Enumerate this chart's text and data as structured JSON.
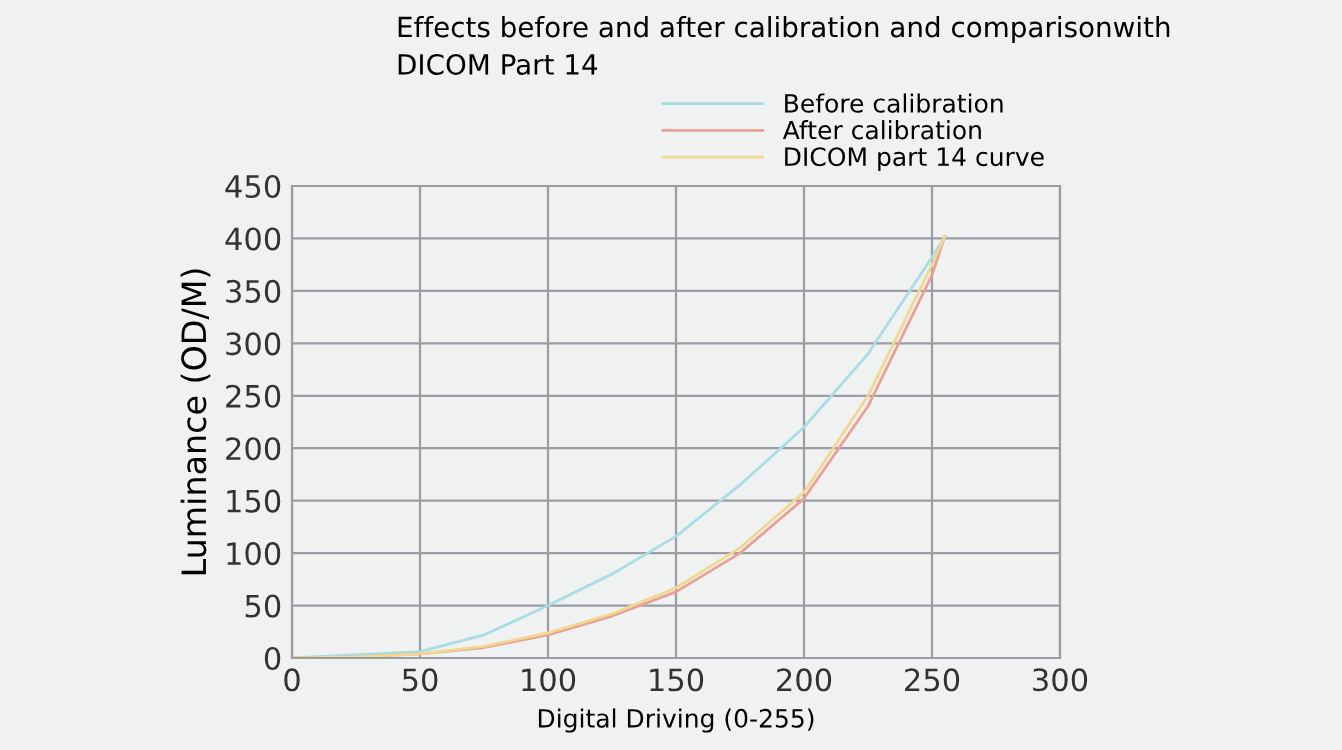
{
  "chart_data": {
    "type": "line",
    "title": "Effects before and after calibration and comparisonwith\nDICOM Part 14",
    "xlabel": "Digital Driving (0-255)",
    "ylabel": "Luminance (OD/M)",
    "series": [
      {
        "name": "Before calibration",
        "color": "#a8dde6",
        "x": [
          0,
          50,
          75,
          100,
          125,
          150,
          175,
          200,
          225,
          250,
          255
        ],
        "values": [
          0,
          6,
          22,
          50,
          80,
          116,
          165,
          220,
          290,
          382,
          402
        ]
      },
      {
        "name": "After calibration",
        "color": "#e8a098",
        "x": [
          0,
          25,
          50,
          75,
          100,
          125,
          150,
          175,
          200,
          225,
          250,
          255
        ],
        "values": [
          0,
          1,
          4,
          10,
          22,
          40,
          63,
          100,
          152,
          240,
          365,
          402
        ]
      },
      {
        "name": "DICOM part 14 curve",
        "color": "#f0d890",
        "x": [
          0,
          25,
          50,
          75,
          100,
          125,
          150,
          175,
          200,
          225,
          250,
          255
        ],
        "values": [
          0,
          1,
          4,
          11,
          24,
          42,
          67,
          105,
          158,
          250,
          375,
          402
        ]
      }
    ],
    "xlim": [
      0,
      300
    ],
    "xticks": [
      0,
      50,
      100,
      150,
      200,
      250,
      300
    ],
    "ylim": [
      0,
      450
    ],
    "yticks": [
      0,
      50,
      100,
      150,
      200,
      250,
      300,
      350,
      400,
      450
    ],
    "grid": true,
    "legend": "top right",
    "marker": "none",
    "line_style": "solid"
  }
}
